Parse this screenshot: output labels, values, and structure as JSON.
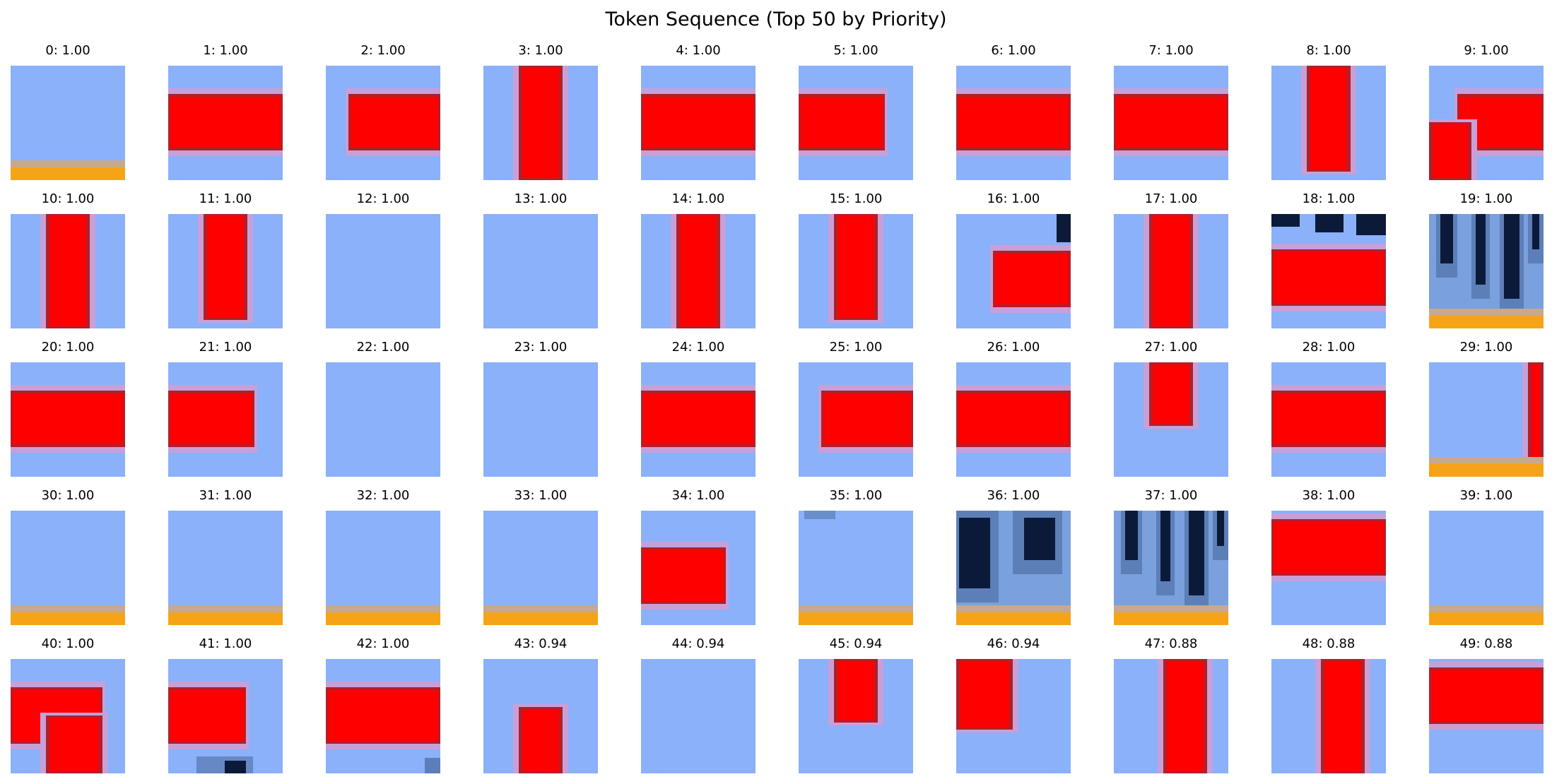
{
  "title": "Token Sequence (Top 50 by Priority)",
  "colors": {
    "sky": "#8ab1f9",
    "red": "#ff0000",
    "dark_red": "#b0202a",
    "pink_edge": "#c8a0d8",
    "orange": "#f5a417",
    "navy": "#0c1a3a",
    "mid_blue": "#5d7fb8"
  },
  "tiles": [
    {
      "index": "0",
      "score": "1.00",
      "label": "0: 1.00",
      "pattern": "orange_bottom"
    },
    {
      "index": "1",
      "score": "1.00",
      "label": "1: 1.00",
      "pattern": "hbar"
    },
    {
      "index": "2",
      "score": "1.00",
      "label": "2: 1.00",
      "pattern": "hbar_right"
    },
    {
      "index": "3",
      "score": "1.00",
      "label": "3: 1.00",
      "pattern": "vbar"
    },
    {
      "index": "4",
      "score": "1.00",
      "label": "4: 1.00",
      "pattern": "hbar"
    },
    {
      "index": "5",
      "score": "1.00",
      "label": "5: 1.00",
      "pattern": "hbar_left"
    },
    {
      "index": "6",
      "score": "1.00",
      "label": "6: 1.00",
      "pattern": "hbar"
    },
    {
      "index": "7",
      "score": "1.00",
      "label": "7: 1.00",
      "pattern": "hbar"
    },
    {
      "index": "8",
      "score": "1.00",
      "label": "8: 1.00",
      "pattern": "vbar_bottom"
    },
    {
      "index": "9",
      "score": "1.00",
      "label": "9: 1.00",
      "pattern": "corner"
    },
    {
      "index": "10",
      "score": "1.00",
      "label": "10: 1.00",
      "pattern": "vbar"
    },
    {
      "index": "11",
      "score": "1.00",
      "label": "11: 1.00",
      "pattern": "vbar_bottom"
    },
    {
      "index": "12",
      "score": "1.00",
      "label": "12: 1.00",
      "pattern": "empty"
    },
    {
      "index": "13",
      "score": "1.00",
      "label": "13: 1.00",
      "pattern": "empty"
    },
    {
      "index": "14",
      "score": "1.00",
      "label": "14: 1.00",
      "pattern": "vbar"
    },
    {
      "index": "15",
      "score": "1.00",
      "label": "15: 1.00",
      "pattern": "vbar_bottom"
    },
    {
      "index": "16",
      "score": "1.00",
      "label": "16: 1.00",
      "pattern": "hbar_right_dark"
    },
    {
      "index": "17",
      "score": "1.00",
      "label": "17: 1.00",
      "pattern": "vbar"
    },
    {
      "index": "18",
      "score": "1.00",
      "label": "18: 1.00",
      "pattern": "hbar_dark_top"
    },
    {
      "index": "19",
      "score": "1.00",
      "label": "19: 1.00",
      "pattern": "dark_stripes_orange"
    },
    {
      "index": "20",
      "score": "1.00",
      "label": "20: 1.00",
      "pattern": "hbar"
    },
    {
      "index": "21",
      "score": "1.00",
      "label": "21: 1.00",
      "pattern": "hbar_left"
    },
    {
      "index": "22",
      "score": "1.00",
      "label": "22: 1.00",
      "pattern": "empty"
    },
    {
      "index": "23",
      "score": "1.00",
      "label": "23: 1.00",
      "pattern": "empty"
    },
    {
      "index": "24",
      "score": "1.00",
      "label": "24: 1.00",
      "pattern": "hbar"
    },
    {
      "index": "25",
      "score": "1.00",
      "label": "25: 1.00",
      "pattern": "hbar_right"
    },
    {
      "index": "26",
      "score": "1.00",
      "label": "26: 1.00",
      "pattern": "hbar"
    },
    {
      "index": "27",
      "score": "1.00",
      "label": "27: 1.00",
      "pattern": "vbar_top"
    },
    {
      "index": "28",
      "score": "1.00",
      "label": "28: 1.00",
      "pattern": "hbar"
    },
    {
      "index": "29",
      "score": "1.00",
      "label": "29: 1.00",
      "pattern": "edge_right_orange"
    },
    {
      "index": "30",
      "score": "1.00",
      "label": "30: 1.00",
      "pattern": "orange_bottom"
    },
    {
      "index": "31",
      "score": "1.00",
      "label": "31: 1.00",
      "pattern": "orange_bottom"
    },
    {
      "index": "32",
      "score": "1.00",
      "label": "32: 1.00",
      "pattern": "orange_bottom"
    },
    {
      "index": "33",
      "score": "1.00",
      "label": "33: 1.00",
      "pattern": "orange_bottom"
    },
    {
      "index": "34",
      "score": "1.00",
      "label": "34: 1.00",
      "pattern": "hbar_left_low"
    },
    {
      "index": "35",
      "score": "1.00",
      "label": "35: 1.00",
      "pattern": "orange_bottom_smudge"
    },
    {
      "index": "36",
      "score": "1.00",
      "label": "36: 1.00",
      "pattern": "dark_blobs_orange"
    },
    {
      "index": "37",
      "score": "1.00",
      "label": "37: 1.00",
      "pattern": "dark_stripes_orange"
    },
    {
      "index": "38",
      "score": "1.00",
      "label": "38: 1.00",
      "pattern": "hbar_top"
    },
    {
      "index": "39",
      "score": "1.00",
      "label": "39: 1.00",
      "pattern": "orange_bottom"
    },
    {
      "index": "40",
      "score": "1.00",
      "label": "40: 1.00",
      "pattern": "corner_down"
    },
    {
      "index": "41",
      "score": "1.00",
      "label": "41: 1.00",
      "pattern": "hbar_left_dark_bottom"
    },
    {
      "index": "42",
      "score": "1.00",
      "label": "42: 1.00",
      "pattern": "hbar_dark_corner"
    },
    {
      "index": "43",
      "score": "0.94",
      "label": "43: 0.94",
      "pattern": "vbar_from_mid"
    },
    {
      "index": "44",
      "score": "0.94",
      "label": "44: 0.94",
      "pattern": "empty"
    },
    {
      "index": "45",
      "score": "0.94",
      "label": "45: 0.94",
      "pattern": "vbar_top"
    },
    {
      "index": "46",
      "score": "0.94",
      "label": "46: 0.94",
      "pattern": "vbar_top_left"
    },
    {
      "index": "47",
      "score": "0.88",
      "label": "47: 0.88",
      "pattern": "vbar_right"
    },
    {
      "index": "48",
      "score": "0.88",
      "label": "48: 0.88",
      "pattern": "vbar_right"
    },
    {
      "index": "49",
      "score": "0.88",
      "label": "49: 0.88",
      "pattern": "hbar_top"
    }
  ]
}
